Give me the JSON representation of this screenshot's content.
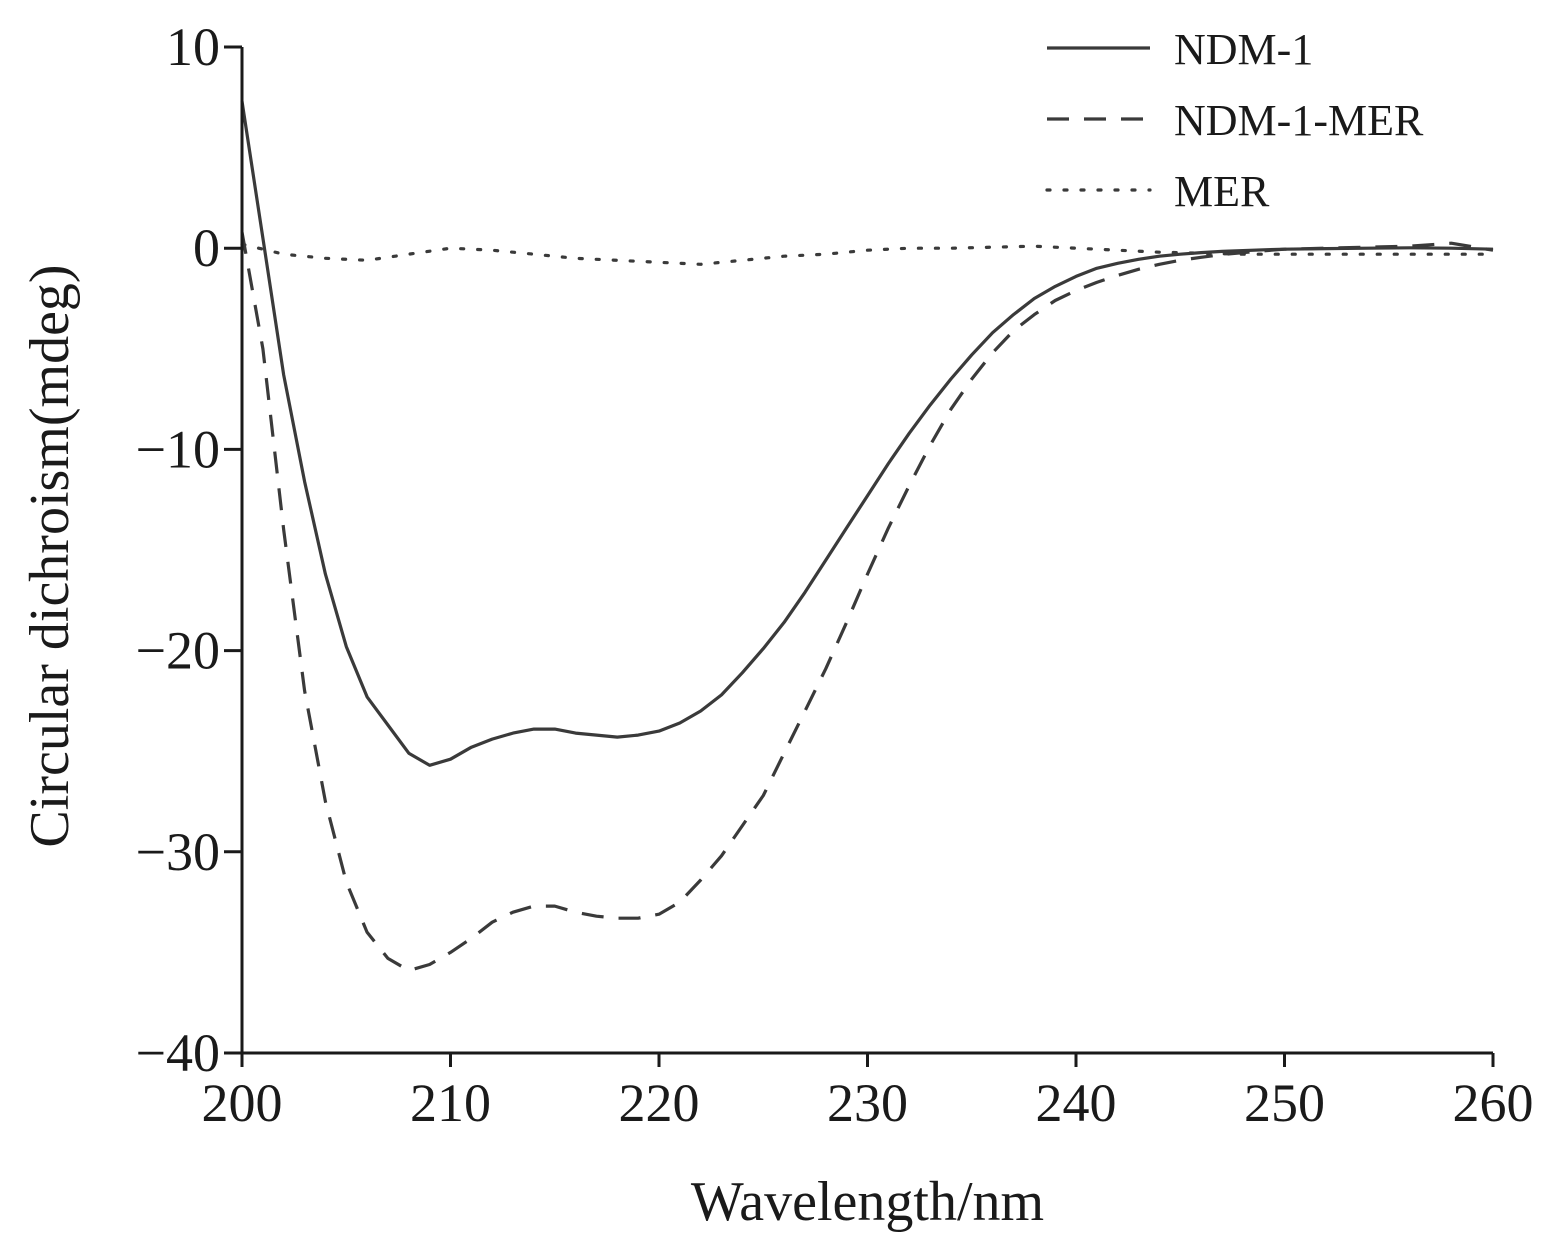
{
  "chart_data": {
    "type": "line",
    "xlabel": "Wavelength/nm",
    "ylabel": "Circular dichroism(mdeg)",
    "xlim": [
      200,
      260
    ],
    "ylim": [
      -40,
      10
    ],
    "xticks": [
      200,
      210,
      220,
      230,
      240,
      250,
      260
    ],
    "yticks": [
      10,
      0,
      -10,
      -20,
      -30,
      -40
    ],
    "ytick_labels": [
      "10",
      "0",
      "−10",
      "−20",
      "−30",
      "−40"
    ],
    "grid": false,
    "legend_position": "top-right",
    "series": [
      {
        "name": "NDM-1",
        "style": "solid",
        "color": "#3a3a3a",
        "x": [
          200,
          201,
          202,
          203,
          204,
          205,
          206,
          207,
          208,
          209,
          210,
          211,
          212,
          213,
          214,
          215,
          216,
          217,
          218,
          219,
          220,
          221,
          222,
          223,
          224,
          225,
          226,
          227,
          228,
          229,
          230,
          231,
          232,
          233,
          234,
          235,
          236,
          237,
          238,
          239,
          240,
          241,
          242,
          243,
          244,
          245,
          246,
          247,
          248,
          249,
          250,
          252,
          254,
          256,
          258,
          260
        ],
        "y": [
          7.3,
          0.5,
          -6.3,
          -11.6,
          -16.2,
          -19.8,
          -22.3,
          -23.7,
          -25.1,
          -25.7,
          -25.4,
          -24.8,
          -24.4,
          -24.1,
          -23.9,
          -23.9,
          -24.1,
          -24.2,
          -24.3,
          -24.2,
          -24.0,
          -23.6,
          -23.0,
          -22.2,
          -21.1,
          -19.9,
          -18.6,
          -17.1,
          -15.5,
          -13.9,
          -12.3,
          -10.7,
          -9.2,
          -7.8,
          -6.5,
          -5.3,
          -4.2,
          -3.3,
          -2.5,
          -1.9,
          -1.4,
          -1.0,
          -0.75,
          -0.55,
          -0.4,
          -0.3,
          -0.22,
          -0.16,
          -0.12,
          -0.08,
          -0.05,
          -0.02,
          0.0,
          0.02,
          0.0,
          -0.05
        ]
      },
      {
        "name": "NDM-1-MER",
        "style": "dashed",
        "color": "#3a3a3a",
        "x": [
          200,
          201,
          202,
          203,
          204,
          205,
          206,
          207,
          208,
          209,
          210,
          211,
          212,
          213,
          214,
          215,
          216,
          217,
          218,
          219,
          220,
          221,
          222,
          223,
          224,
          225,
          226,
          227,
          228,
          229,
          230,
          231,
          232,
          233,
          234,
          235,
          236,
          237,
          238,
          239,
          240,
          241,
          242,
          243,
          244,
          245,
          246,
          247,
          248,
          249,
          250,
          252,
          254,
          256,
          258,
          260
        ],
        "y": [
          0.8,
          -5.0,
          -14.0,
          -22.0,
          -27.5,
          -31.5,
          -34.0,
          -35.3,
          -35.9,
          -35.6,
          -35.0,
          -34.3,
          -33.5,
          -33.0,
          -32.7,
          -32.7,
          -33.0,
          -33.2,
          -33.3,
          -33.3,
          -33.1,
          -32.5,
          -31.4,
          -30.2,
          -28.7,
          -27.2,
          -25.1,
          -23.0,
          -20.9,
          -18.6,
          -16.2,
          -13.9,
          -11.8,
          -9.8,
          -8.0,
          -6.5,
          -5.2,
          -4.1,
          -3.3,
          -2.6,
          -2.1,
          -1.7,
          -1.35,
          -1.05,
          -0.8,
          -0.6,
          -0.45,
          -0.32,
          -0.22,
          -0.13,
          -0.05,
          0.0,
          0.05,
          0.1,
          0.25,
          -0.1
        ]
      },
      {
        "name": "MER",
        "style": "dotted",
        "color": "#3a3a3a",
        "x": [
          200,
          202,
          204,
          206,
          208,
          210,
          212,
          214,
          216,
          218,
          220,
          222,
          224,
          226,
          228,
          230,
          232,
          234,
          236,
          238,
          240,
          242,
          244,
          246,
          248,
          250,
          252,
          254,
          256,
          258,
          260
        ],
        "y": [
          0.2,
          -0.3,
          -0.5,
          -0.6,
          -0.3,
          0.0,
          -0.1,
          -0.3,
          -0.5,
          -0.6,
          -0.7,
          -0.8,
          -0.6,
          -0.4,
          -0.3,
          -0.1,
          0.0,
          0.0,
          0.05,
          0.1,
          0.0,
          -0.1,
          -0.2,
          -0.25,
          -0.3,
          -0.3,
          -0.3,
          -0.3,
          -0.3,
          -0.3,
          -0.3
        ]
      }
    ]
  }
}
